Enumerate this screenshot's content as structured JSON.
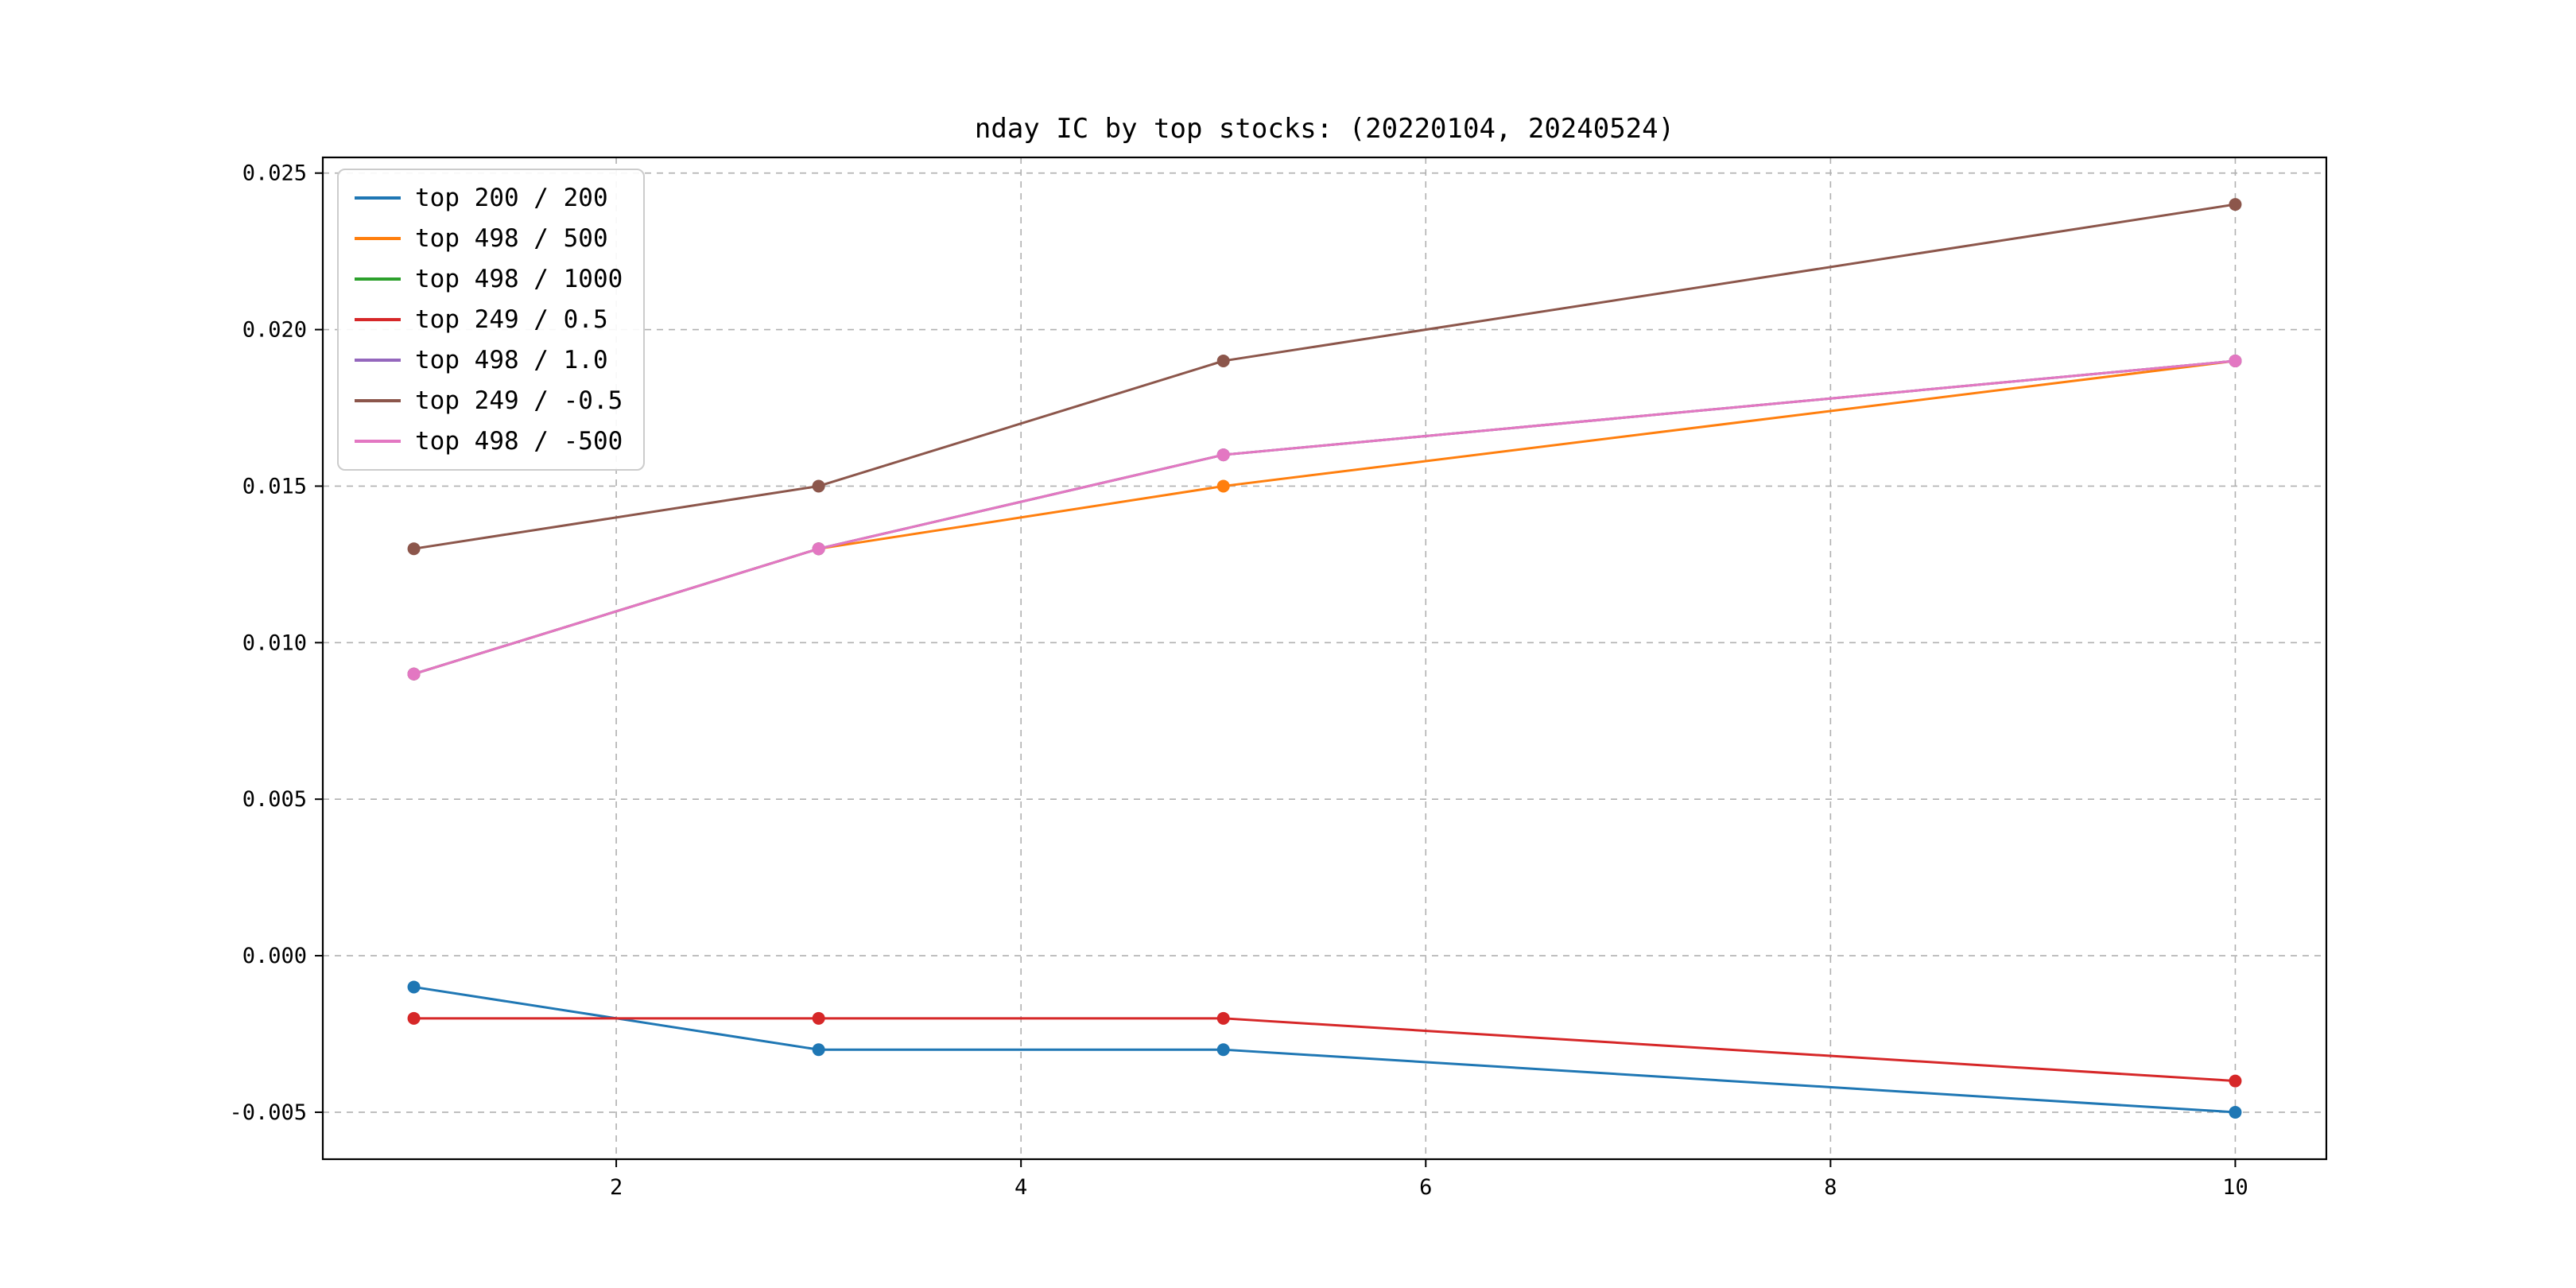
{
  "chart_data": {
    "type": "line",
    "title": "nday IC by top stocks: (20220104, 20240524)",
    "xlabel": "",
    "ylabel": "",
    "x": [
      1,
      3,
      5,
      10
    ],
    "series": [
      {
        "name": "top 200 / 200",
        "color": "#1f77b4",
        "values": [
          -0.001,
          -0.003,
          -0.003,
          -0.005
        ]
      },
      {
        "name": "top 498 / 500",
        "color": "#ff7f0e",
        "values": [
          0.009,
          0.013,
          0.015,
          0.019
        ]
      },
      {
        "name": "top 498 / 1000",
        "color": "#2ca02c",
        "values": [
          0.009,
          0.013,
          0.016,
          0.019
        ]
      },
      {
        "name": "top 249 / 0.5",
        "color": "#d62728",
        "values": [
          -0.002,
          -0.002,
          -0.002,
          -0.004
        ]
      },
      {
        "name": "top 498 / 1.0",
        "color": "#9467bd",
        "values": [
          0.009,
          0.013,
          0.016,
          0.019
        ]
      },
      {
        "name": "top 249 / -0.5",
        "color": "#8c564b",
        "values": [
          0.013,
          0.015,
          0.019,
          0.024
        ]
      },
      {
        "name": "top 498 / -500",
        "color": "#e377c2",
        "values": [
          0.009,
          0.013,
          0.016,
          0.019
        ]
      }
    ],
    "xticks": {
      "values": [
        2,
        4,
        6,
        8,
        10
      ],
      "labels": [
        "2",
        "4",
        "6",
        "8",
        "10"
      ]
    },
    "yticks": {
      "values": [
        0.025,
        0.02,
        0.015,
        0.01,
        0.005,
        0.0,
        -0.005
      ],
      "labels": [
        "0.025",
        "0.020",
        "0.015",
        "0.010",
        "0.005",
        "0.000",
        "-0.005"
      ]
    },
    "xlim": [
      0.55,
      10.45
    ],
    "ylim": [
      -0.0065,
      0.0255
    ],
    "grid": true,
    "grid_color": "#b0b0b0",
    "axes_color": "#000000",
    "legend_position": "upper left"
  }
}
